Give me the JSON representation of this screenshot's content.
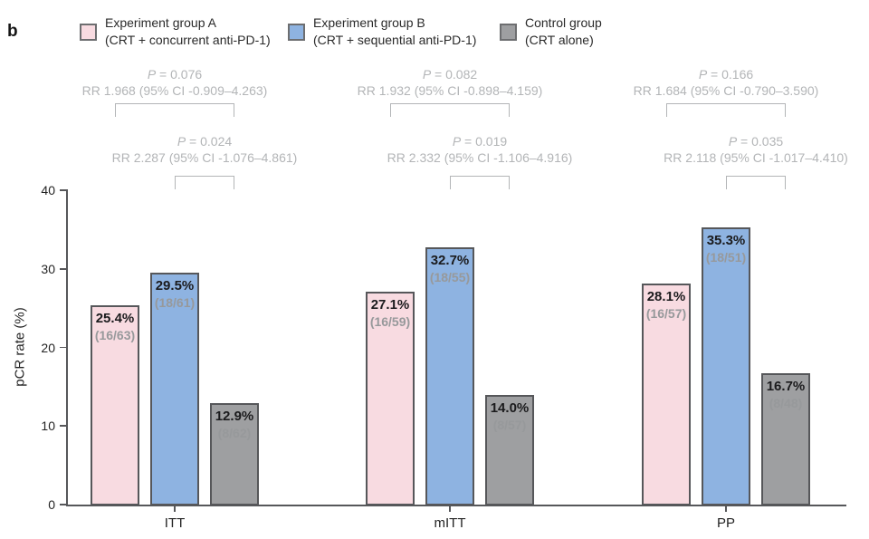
{
  "panel_label": "b",
  "legend": {
    "items": [
      {
        "name": "Experiment group A",
        "detail": "(CRT + concurrent anti-PD-1)",
        "color": "#f8dbe1"
      },
      {
        "name": "Experiment group B",
        "detail": "(CRT + sequential anti-PD-1)",
        "color": "#8eb3e1"
      },
      {
        "name": "Control group",
        "detail": "(CRT alone)",
        "color": "#9e9fa1"
      }
    ]
  },
  "chart_data": {
    "type": "bar",
    "title": "",
    "ylabel": "pCR rate (%)",
    "xlabel": "",
    "ylim": [
      0,
      40
    ],
    "yticks": [
      0,
      10,
      20,
      30,
      40
    ],
    "grid": false,
    "legend_position": "top",
    "categories": [
      "ITT",
      "mITT",
      "PP"
    ],
    "series": [
      {
        "name": "Experiment group A (CRT + concurrent anti-PD-1)",
        "color": "#f8dbe1",
        "values": [
          25.4,
          27.1,
          28.1
        ],
        "value_labels": [
          "25.4%",
          "27.1%",
          "28.1%"
        ],
        "count_labels": [
          "(16/63)",
          "(16/59)",
          "(16/57)"
        ]
      },
      {
        "name": "Experiment group B (CRT + sequential anti-PD-1)",
        "color": "#8eb3e1",
        "values": [
          29.5,
          32.7,
          35.3
        ],
        "value_labels": [
          "29.5%",
          "32.7%",
          "35.3%"
        ],
        "count_labels": [
          "(18/61)",
          "(18/55)",
          "(18/51)"
        ]
      },
      {
        "name": "Control group (CRT alone)",
        "color": "#9e9fa1",
        "values": [
          12.9,
          14.0,
          16.7
        ],
        "value_labels": [
          "12.9%",
          "14.0%",
          "16.7%"
        ],
        "count_labels": [
          "(8/62)",
          "(8/57)",
          "(8/48)"
        ]
      }
    ],
    "comparisons": [
      {
        "category": "ITT",
        "a_vs_control": {
          "p_text": "P = 0.076",
          "rr_text": "RR 1.968 (95% CI -0.909–4.263)"
        },
        "b_vs_control": {
          "p_text": "P = 0.024",
          "rr_text": "RR 2.287 (95% CI -1.076–4.861)"
        }
      },
      {
        "category": "mITT",
        "a_vs_control": {
          "p_text": "P = 0.082",
          "rr_text": "RR 1.932 (95% CI -0.898–4.159)"
        },
        "b_vs_control": {
          "p_text": "P = 0.019",
          "rr_text": "RR 2.332 (95% CI -1.106–4.916)"
        }
      },
      {
        "category": "PP",
        "a_vs_control": {
          "p_text": "P = 0.166",
          "rr_text": "RR 1.684 (95% CI -0.790–3.590)"
        },
        "b_vs_control": {
          "p_text": "P = 0.035",
          "rr_text": "RR 2.118 (95% CI -1.017–4.410)"
        }
      }
    ]
  },
  "colors": {
    "axis": "#56575a",
    "bar_border": "#56575a",
    "tick_label": "#232323",
    "value_label": "#1b1b1d",
    "count_label": "#97999b",
    "annotation": "#b3b5b7"
  }
}
